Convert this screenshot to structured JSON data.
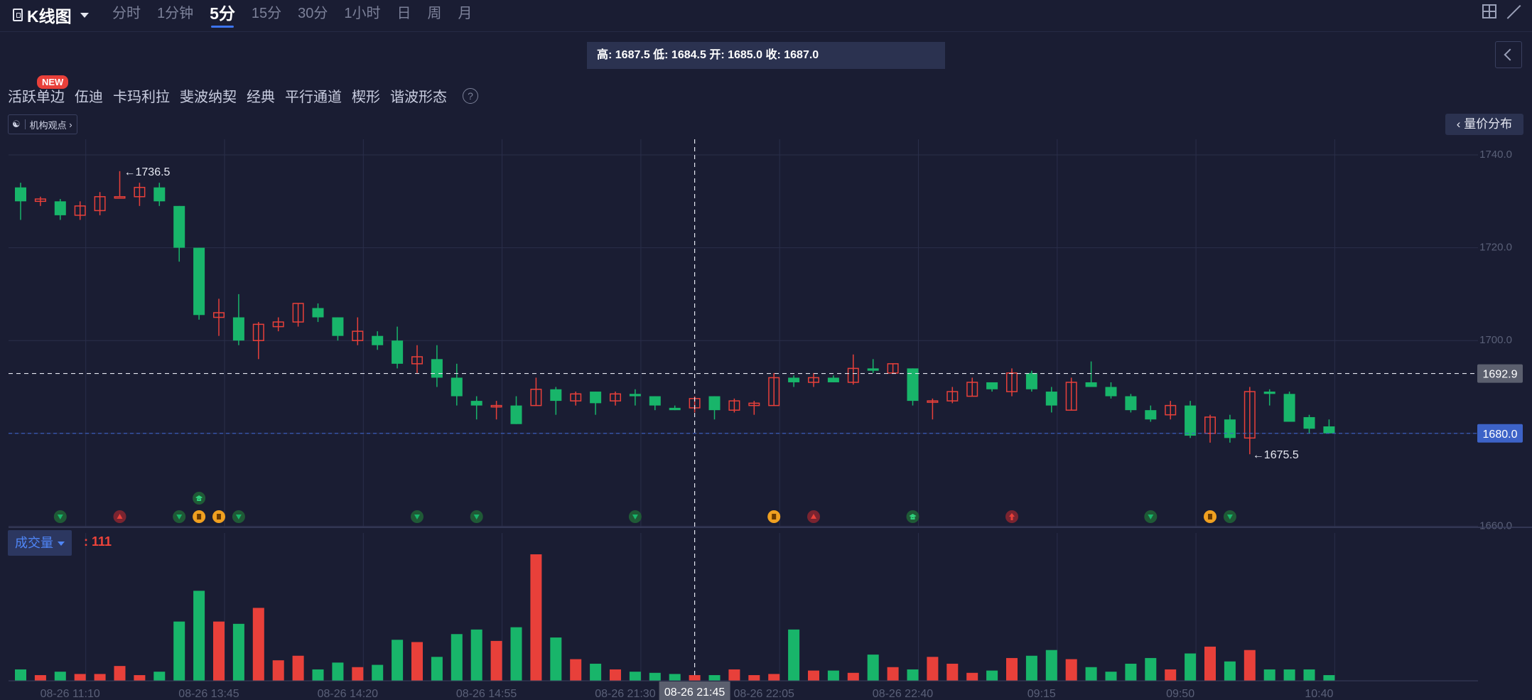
{
  "header": {
    "title": "K线图",
    "periods": [
      "分时",
      "1分钟",
      "5分",
      "15分",
      "30分",
      "1小时",
      "日",
      "周",
      "月"
    ],
    "active_period": "5分"
  },
  "infobar": {
    "text": "高: 1687.5 低: 1684.5 开: 1685.0 收: 1687.0"
  },
  "tools": {
    "new_badge": "NEW",
    "items": [
      "活跃单边",
      "伍迪",
      "卡玛利拉",
      "斐波纳契",
      "经典",
      "平行通道",
      "楔形",
      "谐波形态"
    ],
    "help_icon": "question-icon"
  },
  "institution_button": {
    "label": "机构观点",
    "icon": "institution-icon"
  },
  "volume_profile_button": {
    "label": "量价分布"
  },
  "volume_panel": {
    "selector_label": "成交量",
    "value_text": ": 111"
  },
  "colors": {
    "background": "#1a1d33",
    "up": "#e8403a",
    "down": "#18b56a",
    "accent": "#3d74f0",
    "current_price_label": "#3d63c8",
    "crosshair_label": "#5b5f6e"
  },
  "chart_data": {
    "type": "candlestick",
    "y_ticks": [
      1740.0,
      1720.0,
      1700.0,
      1680.0,
      1660.0
    ],
    "ylim": [
      1660.0,
      1743.0
    ],
    "x_tick_labels": [
      "08-26 11:10",
      "08-26 13:45",
      "08-26 14:20",
      "08-26 14:55",
      "08-26 21:30",
      "08-26 22:05",
      "08-26 22:40",
      "09:15",
      "09:50",
      "10:40"
    ],
    "x_tick_candle_index": [
      3,
      10,
      17,
      24,
      31,
      38,
      45,
      52,
      59,
      66
    ],
    "max_label": "1736.5",
    "min_label": "1675.5",
    "crosshair": {
      "price_label": "1692.9",
      "price": 1692.9,
      "time_label": "08-26 21:45",
      "candle_index": 34
    },
    "current_price": {
      "label": "1680.0",
      "price": 1680.0
    },
    "candles": [
      {
        "o": 1733,
        "c": 1730,
        "h": 1734,
        "l": 1726
      },
      {
        "o": 1730,
        "c": 1730.5,
        "h": 1731,
        "l": 1729
      },
      {
        "o": 1730,
        "c": 1727,
        "h": 1730.5,
        "l": 1726
      },
      {
        "o": 1727,
        "c": 1729,
        "h": 1730,
        "l": 1726
      },
      {
        "o": 1728,
        "c": 1731,
        "h": 1732,
        "l": 1727
      },
      {
        "o": 1731,
        "c": 1731,
        "h": 1736.5,
        "l": 1731
      },
      {
        "o": 1731,
        "c": 1733,
        "h": 1734,
        "l": 1729
      },
      {
        "o": 1733,
        "c": 1730,
        "h": 1734,
        "l": 1729
      },
      {
        "o": 1729,
        "c": 1720,
        "h": 1729,
        "l": 1717
      },
      {
        "o": 1720,
        "c": 1705.5,
        "h": 1720,
        "l": 1704.5
      },
      {
        "o": 1705,
        "c": 1706,
        "h": 1709,
        "l": 1701
      },
      {
        "o": 1705,
        "c": 1700,
        "h": 1710,
        "l": 1699
      },
      {
        "o": 1700,
        "c": 1703.5,
        "h": 1704,
        "l": 1696
      },
      {
        "o": 1703,
        "c": 1704,
        "h": 1705,
        "l": 1702
      },
      {
        "o": 1704,
        "c": 1708,
        "h": 1708,
        "l": 1703
      },
      {
        "o": 1707,
        "c": 1705,
        "h": 1708,
        "l": 1704
      },
      {
        "o": 1705,
        "c": 1701,
        "h": 1705,
        "l": 1700
      },
      {
        "o": 1700,
        "c": 1702,
        "h": 1705,
        "l": 1699
      },
      {
        "o": 1701,
        "c": 1699,
        "h": 1702,
        "l": 1698
      },
      {
        "o": 1700,
        "c": 1695,
        "h": 1703,
        "l": 1694
      },
      {
        "o": 1695,
        "c": 1696.5,
        "h": 1699,
        "l": 1693
      },
      {
        "o": 1696,
        "c": 1692,
        "h": 1699,
        "l": 1690
      },
      {
        "o": 1692,
        "c": 1688,
        "h": 1695,
        "l": 1686
      },
      {
        "o": 1687,
        "c": 1686,
        "h": 1688,
        "l": 1683
      },
      {
        "o": 1686,
        "c": 1686,
        "h": 1687,
        "l": 1683
      },
      {
        "o": 1686,
        "c": 1682,
        "h": 1688,
        "l": 1682
      },
      {
        "o": 1686,
        "c": 1689.5,
        "h": 1692,
        "l": 1686
      },
      {
        "o": 1689.5,
        "c": 1687,
        "h": 1690,
        "l": 1684
      },
      {
        "o": 1687,
        "c": 1688.5,
        "h": 1689,
        "l": 1686
      },
      {
        "o": 1689,
        "c": 1686.5,
        "h": 1689,
        "l": 1684
      },
      {
        "o": 1687,
        "c": 1688.5,
        "h": 1689,
        "l": 1686
      },
      {
        "o": 1688.5,
        "c": 1688,
        "h": 1689.5,
        "l": 1686
      },
      {
        "o": 1688,
        "c": 1686,
        "h": 1688,
        "l": 1685
      },
      {
        "o": 1685.5,
        "c": 1685,
        "h": 1686,
        "l": 1685
      },
      {
        "o": 1685.5,
        "c": 1687.5,
        "h": 1688,
        "l": 1684.5
      },
      {
        "o": 1688,
        "c": 1685,
        "h": 1688,
        "l": 1683
      },
      {
        "o": 1685,
        "c": 1687,
        "h": 1687.5,
        "l": 1684.5
      },
      {
        "o": 1686,
        "c": 1686.5,
        "h": 1687,
        "l": 1684
      },
      {
        "o": 1686,
        "c": 1692,
        "h": 1693,
        "l": 1686
      },
      {
        "o": 1692,
        "c": 1691,
        "h": 1692.5,
        "l": 1690
      },
      {
        "o": 1691,
        "c": 1692,
        "h": 1693,
        "l": 1690
      },
      {
        "o": 1692,
        "c": 1691,
        "h": 1692.5,
        "l": 1691
      },
      {
        "o": 1691,
        "c": 1694,
        "h": 1697,
        "l": 1690.5
      },
      {
        "o": 1694,
        "c": 1693.5,
        "h": 1696,
        "l": 1693
      },
      {
        "o": 1693,
        "c": 1695,
        "h": 1695,
        "l": 1693
      },
      {
        "o": 1694,
        "c": 1687,
        "h": 1694,
        "l": 1686
      },
      {
        "o": 1687,
        "c": 1687,
        "h": 1687.5,
        "l": 1683
      },
      {
        "o": 1687,
        "c": 1689,
        "h": 1690,
        "l": 1686.5
      },
      {
        "o": 1688,
        "c": 1691,
        "h": 1692,
        "l": 1688
      },
      {
        "o": 1691,
        "c": 1689.5,
        "h": 1691,
        "l": 1689
      },
      {
        "o": 1689,
        "c": 1693,
        "h": 1694,
        "l": 1688
      },
      {
        "o": 1693,
        "c": 1689.5,
        "h": 1693.5,
        "l": 1689
      },
      {
        "o": 1689,
        "c": 1686,
        "h": 1690,
        "l": 1684.5
      },
      {
        "o": 1685,
        "c": 1691,
        "h": 1692,
        "l": 1685
      },
      {
        "o": 1691,
        "c": 1690,
        "h": 1695.5,
        "l": 1690
      },
      {
        "o": 1690,
        "c": 1688,
        "h": 1691,
        "l": 1687.5
      },
      {
        "o": 1688,
        "c": 1685,
        "h": 1688.5,
        "l": 1684.5
      },
      {
        "o": 1685,
        "c": 1683,
        "h": 1686,
        "l": 1682.5
      },
      {
        "o": 1684,
        "c": 1686,
        "h": 1687,
        "l": 1683
      },
      {
        "o": 1686,
        "c": 1679.5,
        "h": 1687,
        "l": 1679
      },
      {
        "o": 1680,
        "c": 1683.5,
        "h": 1684,
        "l": 1678
      },
      {
        "o": 1683,
        "c": 1679,
        "h": 1684,
        "l": 1678
      },
      {
        "o": 1679,
        "c": 1689,
        "h": 1690,
        "l": 1675.5
      },
      {
        "o": 1689,
        "c": 1688.5,
        "h": 1689.5,
        "l": 1686
      },
      {
        "o": 1688.5,
        "c": 1682.5,
        "h": 1689,
        "l": 1682.5
      },
      {
        "o": 1683.5,
        "c": 1681,
        "h": 1684,
        "l": 1680
      },
      {
        "o": 1681.5,
        "c": 1680,
        "h": 1683,
        "l": 1680
      }
    ],
    "volume_max": 111,
    "volumes": [
      10,
      5,
      8,
      6,
      6,
      13,
      5,
      8,
      52,
      79,
      52,
      50,
      64,
      18,
      22,
      10,
      16,
      12,
      14,
      36,
      34,
      21,
      41,
      45,
      35,
      47,
      111,
      38,
      19,
      15,
      10,
      8,
      7,
      6,
      5,
      5,
      10,
      5,
      6,
      45,
      9,
      9,
      7,
      23,
      12,
      10,
      21,
      15,
      7,
      9,
      20,
      22,
      27,
      19,
      12,
      8,
      15,
      20,
      10,
      24,
      30,
      17,
      27,
      10,
      10,
      10,
      5
    ],
    "signals": [
      {
        "i": 2,
        "kind": "down"
      },
      {
        "i": 5,
        "kind": "up"
      },
      {
        "i": 8,
        "kind": "down"
      },
      {
        "i": 9,
        "kind": "coin"
      },
      {
        "i": 10,
        "kind": "coin"
      },
      {
        "i": 11,
        "kind": "down"
      },
      {
        "i": 20,
        "kind": "down"
      },
      {
        "i": 23,
        "kind": "down"
      },
      {
        "i": 31,
        "kind": "down"
      },
      {
        "i": 38,
        "kind": "coin"
      },
      {
        "i": 40,
        "kind": "up"
      },
      {
        "i": 45,
        "kind": "cap"
      },
      {
        "i": 50,
        "kind": "arrow-up"
      },
      {
        "i": 57,
        "kind": "down"
      },
      {
        "i": 60,
        "kind": "coin"
      },
      {
        "i": 61,
        "kind": "down"
      }
    ],
    "extra_marker": {
      "i": 9,
      "kind": "cap"
    }
  }
}
